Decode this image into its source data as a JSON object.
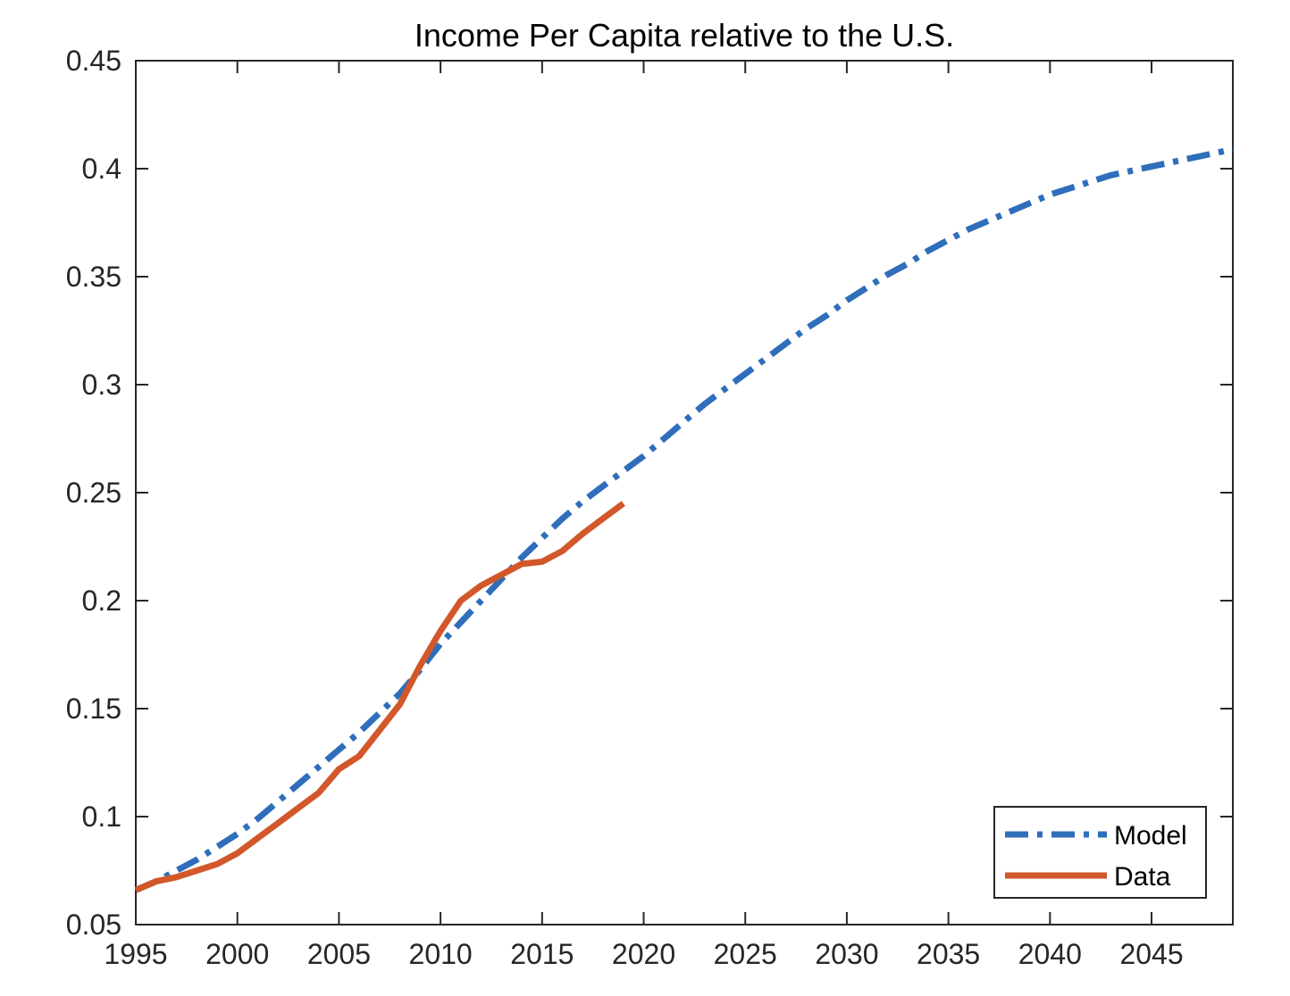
{
  "chart_data": {
    "type": "line",
    "title": "Income Per Capita relative to the U.S.",
    "xlabel": "",
    "ylabel": "",
    "xlim": [
      1995,
      2049
    ],
    "ylim": [
      0.05,
      0.45
    ],
    "x_ticks": [
      1995,
      2000,
      2005,
      2010,
      2015,
      2020,
      2025,
      2030,
      2035,
      2040,
      2045
    ],
    "y_ticks": [
      0.05,
      0.1,
      0.15,
      0.2,
      0.25,
      0.3,
      0.35,
      0.4,
      0.45
    ],
    "x_tick_labels": [
      "1995",
      "2000",
      "2005",
      "2010",
      "2015",
      "2020",
      "2025",
      "2030",
      "2035",
      "2040",
      "2045"
    ],
    "y_tick_labels": [
      "0.05",
      "0.1",
      "0.15",
      "0.2",
      "0.25",
      "0.3",
      "0.35",
      "0.4",
      "0.45"
    ],
    "grid": false,
    "box": true,
    "legend": {
      "placement": "bottom-right"
    },
    "series": [
      {
        "name": "Model",
        "color": "#2F6EBA",
        "style": "dash-dot",
        "x": [
          1995,
          1996,
          1997,
          1998,
          1999,
          2000,
          2001,
          2002,
          2003,
          2004,
          2005,
          2006,
          2007,
          2008,
          2009,
          2010,
          2011,
          2012,
          2013,
          2014,
          2015,
          2016,
          2017,
          2018,
          2019,
          2020,
          2021,
          2022,
          2023,
          2024,
          2025,
          2026,
          2027,
          2028,
          2029,
          2030,
          2031,
          2032,
          2033,
          2034,
          2035,
          2036,
          2037,
          2038,
          2039,
          2040,
          2041,
          2042,
          2043,
          2044,
          2045,
          2046,
          2047,
          2048,
          2049
        ],
        "values": [
          0.066,
          0.07,
          0.075,
          0.08,
          0.086,
          0.092,
          0.099,
          0.107,
          0.115,
          0.123,
          0.131,
          0.139,
          0.148,
          0.157,
          0.168,
          0.18,
          0.19,
          0.2,
          0.21,
          0.22,
          0.229,
          0.238,
          0.246,
          0.253,
          0.26,
          0.267,
          0.275,
          0.283,
          0.291,
          0.298,
          0.305,
          0.312,
          0.319,
          0.326,
          0.332,
          0.339,
          0.345,
          0.351,
          0.356,
          0.362,
          0.367,
          0.372,
          0.376,
          0.38,
          0.384,
          0.388,
          0.391,
          0.394,
          0.397,
          0.399,
          0.401,
          0.403,
          0.405,
          0.407,
          0.409
        ]
      },
      {
        "name": "Data",
        "color": "#D2572A",
        "style": "solid",
        "x": [
          1995,
          1996,
          1997,
          1998,
          1999,
          2000,
          2001,
          2002,
          2003,
          2004,
          2005,
          2006,
          2007,
          2008,
          2009,
          2010,
          2011,
          2012,
          2013,
          2014,
          2015,
          2016,
          2017,
          2018,
          2019
        ],
        "values": [
          0.066,
          0.07,
          0.072,
          0.075,
          0.078,
          0.083,
          0.09,
          0.097,
          0.104,
          0.111,
          0.122,
          0.128,
          0.14,
          0.152,
          0.17,
          0.186,
          0.2,
          0.207,
          0.212,
          0.217,
          0.218,
          0.223,
          0.231,
          0.238,
          0.245
        ]
      }
    ]
  }
}
